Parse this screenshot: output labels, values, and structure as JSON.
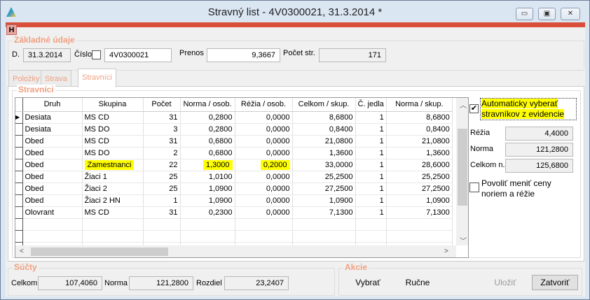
{
  "window": {
    "title": "Stravný list - 4V0300021, 31.3.2014 *",
    "h_tab": "H",
    "min": "▭",
    "max": "▣",
    "close": "✕"
  },
  "basic": {
    "group_title": "Základné údaje",
    "date_label": "D.",
    "date": "31.3.2014",
    "cislo_label": "Číslo",
    "cislo": "4V0300021",
    "prenos_label": "Prenos",
    "prenos": "9,3667",
    "pocet_str_label": "Počet str.",
    "pocet_str": "171"
  },
  "tabs": [
    {
      "label": "Položky"
    },
    {
      "label": "Strava"
    },
    {
      "label": "Stravníci"
    }
  ],
  "stravnici": {
    "group_title": "Stravníci",
    "columns": [
      "Druh",
      "Skupina",
      "Počet",
      "Norma / osob.",
      "Réžia / osob.",
      "Celkom / skup.",
      "Č. jedla",
      "Norma / skup."
    ],
    "rows": [
      [
        "Desiata",
        "MS CD",
        "31",
        "0,2800",
        "0,0000",
        "8,6800",
        "1",
        "8,6800"
      ],
      [
        "Desiata",
        "MS DO",
        "3",
        "0,2800",
        "0,0000",
        "0,8400",
        "1",
        "0,8400"
      ],
      [
        "Obed",
        "MS CD",
        "31",
        "0,6800",
        "0,0000",
        "21,0800",
        "1",
        "21,0800"
      ],
      [
        "Obed",
        "MS DO",
        "2",
        "0,6800",
        "0,0000",
        "1,3600",
        "1",
        "1,3600"
      ],
      [
        "Obed",
        "Zamestnanci",
        "22",
        "1,3000",
        "0,2000",
        "33,0000",
        "1",
        "28,6000"
      ],
      [
        "Obed",
        "Žiaci 1",
        "25",
        "1,0100",
        "0,0000",
        "25,2500",
        "1",
        "25,2500"
      ],
      [
        "Obed",
        "Žiaci 2",
        "25",
        "1,0900",
        "0,0000",
        "27,2500",
        "1",
        "27,2500"
      ],
      [
        "Obed",
        "Žiaci 2 HN",
        "1",
        "1,0900",
        "0,0000",
        "1,0900",
        "1",
        "1,0900"
      ],
      [
        "Olovrant",
        "MS CD",
        "31",
        "0,2300",
        "0,0000",
        "7,1300",
        "1",
        "7,1300"
      ]
    ],
    "highlight_color": "#ffff00",
    "auto_select_label_1": "Automaticky vyberať",
    "auto_select_label_2": "stravníkov z evidencie",
    "auto_select_checked": true,
    "rezia_label": "Réžia",
    "rezia": "4,4000",
    "norma_label": "Norma",
    "norma": "121,2800",
    "celkom_label": "Celkom n.",
    "celkom": "125,6800",
    "allow_label_1": "Povoliť meniť ceny",
    "allow_label_2": "noriem a réžie",
    "allow_checked": false
  },
  "sucty": {
    "group_title": "Súčty",
    "celkom_label": "Celkom",
    "celkom": "107,4060",
    "norma_label": "Norma",
    "norma": "121,2800",
    "rozdiel_label": "Rozdiel",
    "rozdiel": "23,2407"
  },
  "akcie": {
    "group_title": "Akcie",
    "vybrat": "Vybrať",
    "rucne": "Ručne",
    "ulozit": "Uložiť",
    "zatvorit": "Zatvoriť"
  }
}
